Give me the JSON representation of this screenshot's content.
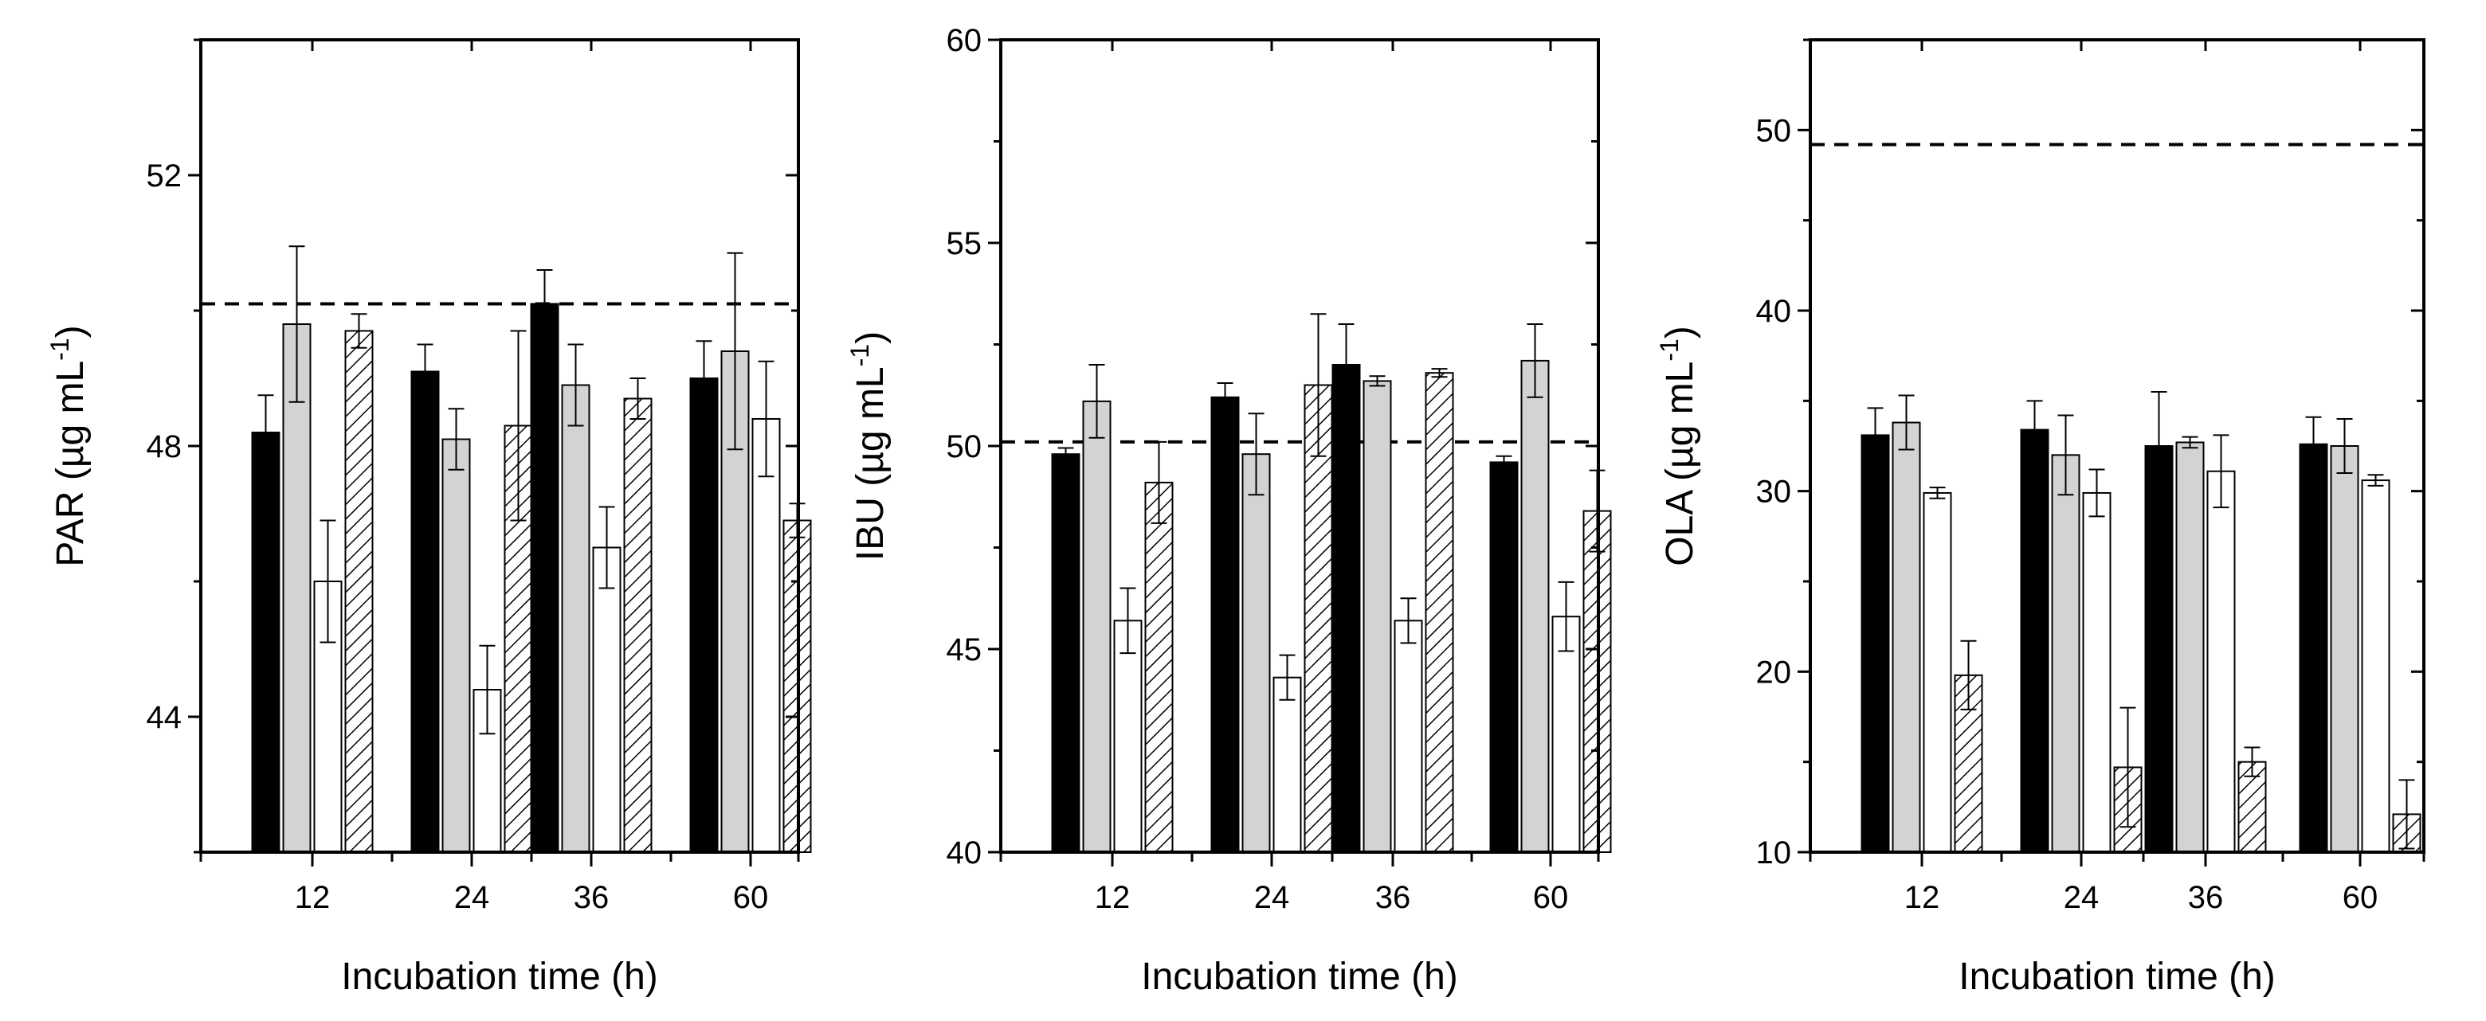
{
  "chart_data": [
    {
      "type": "bar",
      "title": "",
      "xlabel": "Incubation time (h)",
      "ylabel": "PAR",
      "ylabel_unit": "(µg mL",
      "ylabel_sup": "-1",
      "ylabel_close": ")",
      "categories": [
        "12",
        "24",
        "36",
        "60"
      ],
      "ylim": [
        42,
        54
      ],
      "yticks": [
        44,
        48,
        52
      ],
      "ytick_labels": [
        "44",
        "48",
        "52"
      ],
      "reference_line": 50.1,
      "series": [
        {
          "name": "black",
          "fill": "#000000",
          "values": [
            48.2,
            49.1,
            50.1,
            49.0
          ],
          "errors": [
            0.55,
            0.4,
            0.5,
            0.55
          ]
        },
        {
          "name": "grey",
          "fill": "#d3d3d3",
          "values": [
            49.8,
            48.1,
            48.9,
            49.4
          ],
          "errors": [
            1.15,
            0.45,
            0.6,
            1.45
          ]
        },
        {
          "name": "white",
          "fill": "#ffffff",
          "values": [
            46.0,
            44.4,
            46.5,
            48.4
          ],
          "errors": [
            0.9,
            0.65,
            0.6,
            0.85
          ]
        },
        {
          "name": "hatched",
          "fill": "hatch",
          "values": [
            49.7,
            48.3,
            48.7,
            46.9
          ],
          "errors": [
            0.25,
            1.4,
            0.3,
            0.25
          ]
        }
      ]
    },
    {
      "type": "bar",
      "title": "",
      "xlabel": "Incubation time (h)",
      "ylabel": "IBU",
      "ylabel_unit": "(µg mL",
      "ylabel_sup": "-1",
      "ylabel_close": ")",
      "categories": [
        "12",
        "24",
        "36",
        "60"
      ],
      "ylim": [
        40,
        60
      ],
      "yticks": [
        40,
        45,
        50,
        55,
        60
      ],
      "ytick_labels": [
        "40",
        "45",
        "50",
        "55",
        "60"
      ],
      "reference_line": 50.1,
      "series": [
        {
          "name": "black",
          "fill": "#000000",
          "values": [
            49.8,
            51.2,
            52.0,
            49.6
          ],
          "errors": [
            0.15,
            0.35,
            1.0,
            0.15
          ]
        },
        {
          "name": "grey",
          "fill": "#d3d3d3",
          "values": [
            51.1,
            49.8,
            51.6,
            52.1
          ],
          "errors": [
            0.9,
            1.0,
            0.12,
            0.9
          ]
        },
        {
          "name": "white",
          "fill": "#ffffff",
          "values": [
            45.7,
            44.3,
            45.7,
            45.8
          ],
          "errors": [
            0.8,
            0.55,
            0.55,
            0.85
          ]
        },
        {
          "name": "hatched",
          "fill": "hatch",
          "values": [
            49.1,
            51.5,
            51.8,
            48.4
          ],
          "errors": [
            1.0,
            1.75,
            0.1,
            1.0
          ]
        }
      ]
    },
    {
      "type": "bar",
      "title": "",
      "xlabel": "Incubation time (h)",
      "ylabel": "OLA",
      "ylabel_unit": "(µg mL",
      "ylabel_sup": "-1",
      "ylabel_close": ")",
      "categories": [
        "12",
        "24",
        "36",
        "60"
      ],
      "ylim": [
        10,
        55
      ],
      "yticks": [
        10,
        20,
        30,
        40,
        50
      ],
      "ytick_labels": [
        "10",
        "20",
        "30",
        "40",
        "50"
      ],
      "reference_line": 49.2,
      "series": [
        {
          "name": "black",
          "fill": "#000000",
          "values": [
            33.1,
            33.4,
            32.5,
            32.6
          ],
          "errors": [
            1.5,
            1.6,
            3.0,
            1.5
          ]
        },
        {
          "name": "grey",
          "fill": "#d3d3d3",
          "values": [
            33.8,
            32.0,
            32.7,
            32.5
          ],
          "errors": [
            1.5,
            2.2,
            0.3,
            1.5
          ]
        },
        {
          "name": "white",
          "fill": "#ffffff",
          "values": [
            29.9,
            29.9,
            31.1,
            30.6
          ],
          "errors": [
            0.3,
            1.3,
            2.0,
            0.3
          ]
        },
        {
          "name": "hatched",
          "fill": "hatch",
          "values": [
            19.8,
            14.7,
            15.0,
            12.1
          ],
          "errors": [
            1.9,
            3.3,
            0.8,
            1.9
          ]
        }
      ]
    }
  ]
}
